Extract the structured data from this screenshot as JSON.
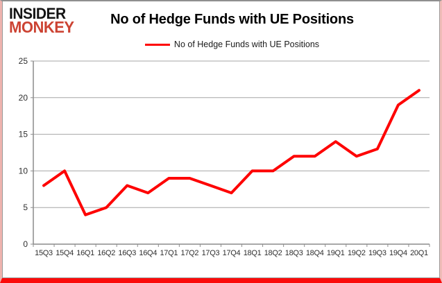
{
  "logo": {
    "line1": "INSIDER",
    "line2": "MONKEY",
    "line1_color": "#141414",
    "line2_color": "#cc4333"
  },
  "header": {
    "title": "No of Hedge Funds with UE Positions"
  },
  "legend": {
    "label": "No of Hedge Funds with UE Positions",
    "line_color": "#fe0000"
  },
  "chart_data": {
    "type": "line",
    "title": "No of Hedge Funds with UE Positions",
    "categories": [
      "15Q3",
      "15Q4",
      "16Q1",
      "16Q2",
      "16Q3",
      "16Q4",
      "17Q1",
      "17Q2",
      "17Q3",
      "17Q4",
      "18Q1",
      "18Q2",
      "18Q3",
      "18Q4",
      "19Q1",
      "19Q2",
      "19Q3",
      "19Q4",
      "20Q1"
    ],
    "series": [
      {
        "name": "No of Hedge Funds with UE Positions",
        "values": [
          8,
          10,
          4,
          5,
          8,
          7,
          9,
          9,
          8,
          7,
          10,
          10,
          12,
          12,
          14,
          12,
          13,
          19,
          21
        ]
      }
    ],
    "xlabel": "",
    "ylabel": "",
    "ylim": [
      0,
      25
    ],
    "yticks": [
      0,
      5,
      10,
      15,
      20,
      25
    ],
    "grid": true,
    "legend_position": "top-center",
    "line_color": "#fe0000",
    "gridline_color": "#a6a6a6",
    "axis_color": "#8c8c8c",
    "tick_label_color": "#2e2e2e"
  },
  "frame": {
    "bottom_border_color": "#fb0a0a",
    "side_border_color": "#eeb3ae"
  }
}
